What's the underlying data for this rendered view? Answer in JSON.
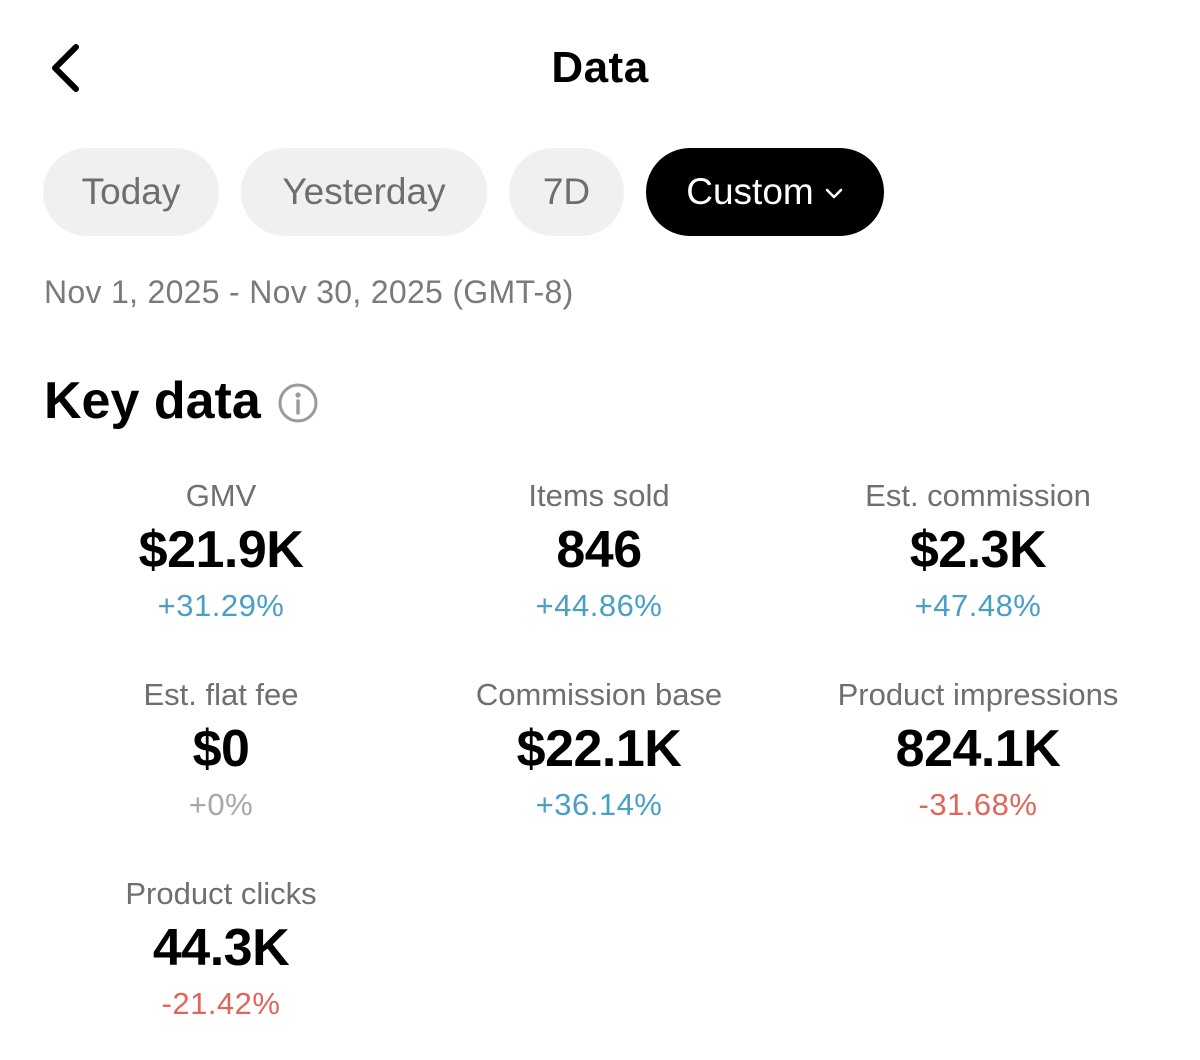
{
  "header": {
    "title": "Data",
    "back_icon": "chevron-left-icon"
  },
  "filters": {
    "chips": [
      {
        "label": "Today",
        "selected": false
      },
      {
        "label": "Yesterday",
        "selected": false
      },
      {
        "label": "7D",
        "selected": false
      },
      {
        "label": "Custom",
        "selected": true
      }
    ],
    "selected_color": "#000000",
    "unselected_color": "#f0f0f0"
  },
  "date_range": "Nov 1, 2025 - Nov 30, 2025 (GMT-8)",
  "key_data": {
    "title": "Key data",
    "metrics": [
      {
        "label": "GMV",
        "value": "$21.9K",
        "change": "+31.29%",
        "trend": "positive"
      },
      {
        "label": "Items sold",
        "value": "846",
        "change": "+44.86%",
        "trend": "positive"
      },
      {
        "label": "Est. commission",
        "value": "$2.3K",
        "change": "+47.48%",
        "trend": "positive"
      },
      {
        "label": "Est. flat fee",
        "value": "$0",
        "change": "+0%",
        "trend": "neutral"
      },
      {
        "label": "Commission base",
        "value": "$22.1K",
        "change": "+36.14%",
        "trend": "positive"
      },
      {
        "label": "Product impressions",
        "value": "824.1K",
        "change": "-31.68%",
        "trend": "negative"
      },
      {
        "label": "Product clicks",
        "value": "44.3K",
        "change": "-21.42%",
        "trend": "negative"
      }
    ]
  },
  "colors": {
    "positive": "#4a9fc4",
    "negative": "#e0665c",
    "neutral": "#a8a8a8"
  }
}
